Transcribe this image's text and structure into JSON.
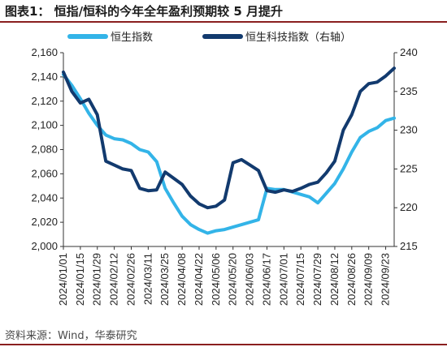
{
  "title": "图表1： 恒指/恒科的今年全年盈利预期较 5 月提升",
  "source": "资料来源：Wind，华泰研究",
  "chart_data": {
    "type": "line",
    "title": "图表1： 恒指/恒科的今年全年盈利预期较 5 月提升",
    "xlabel": "",
    "ylabel": "",
    "legend_position": "top",
    "grid": false,
    "x": [
      "2024/01/01",
      "2024/01/08",
      "2024/01/15",
      "2024/01/22",
      "2024/01/29",
      "2024/02/05",
      "2024/02/12",
      "2024/02/19",
      "2024/02/26",
      "2024/03/04",
      "2024/03/11",
      "2024/03/18",
      "2024/03/25",
      "2024/04/01",
      "2024/04/08",
      "2024/04/15",
      "2024/04/22",
      "2024/04/29",
      "2024/05/06",
      "2024/05/13",
      "2024/05/20",
      "2024/05/27",
      "2024/06/03",
      "2024/06/10",
      "2024/06/17",
      "2024/06/24",
      "2024/07/01",
      "2024/07/08",
      "2024/07/15",
      "2024/07/22",
      "2024/07/29",
      "2024/08/05",
      "2024/08/12",
      "2024/08/19",
      "2024/08/26",
      "2024/09/02",
      "2024/09/09",
      "2024/09/16",
      "2024/09/23",
      "2024/09/27"
    ],
    "x_tick_labels": [
      "2024/01/01",
      "2024/01/15",
      "2024/01/29",
      "2024/02/12",
      "2024/02/26",
      "2024/03/11",
      "2024/03/25",
      "2024/04/08",
      "2024/04/22",
      "2024/05/06",
      "2024/05/20",
      "2024/06/03",
      "2024/06/17",
      "2024/07/01",
      "2024/07/15",
      "2024/07/29",
      "2024/08/12",
      "2024/08/26",
      "2024/09/09",
      "2024/09/23"
    ],
    "y_left_ticks": [
      "2,000",
      "2,020",
      "2,040",
      "2,060",
      "2,080",
      "2,100",
      "2,120",
      "2,140",
      "2,160"
    ],
    "y_right_ticks": [
      "215",
      "220",
      "225",
      "230",
      "235",
      "240"
    ],
    "ylim": [
      2000,
      2160
    ],
    "y2lim": [
      215,
      240
    ],
    "series": [
      {
        "name": "恒生指数",
        "axis": "left",
        "color": "#33b4e8",
        "values": [
          2142,
          2133,
          2122,
          2110,
          2100,
          2092,
          2089,
          2088,
          2085,
          2080,
          2078,
          2070,
          2048,
          2036,
          2025,
          2018,
          2014,
          2011,
          2013,
          2014,
          2016,
          2018,
          2020,
          2022,
          2048,
          2047,
          2047,
          2045,
          2043,
          2041,
          2036,
          2044,
          2052,
          2064,
          2078,
          2090,
          2095,
          2098,
          2104,
          2106
        ]
      },
      {
        "name": "恒生科技指数（右轴）",
        "axis": "right",
        "color": "#123a6e",
        "values": [
          237.5,
          235.0,
          233.5,
          234.0,
          232.0,
          226.0,
          225.5,
          225.0,
          224.8,
          222.5,
          222.2,
          222.3,
          224.6,
          223.8,
          223.0,
          221.5,
          220.5,
          220.0,
          220.2,
          221.0,
          225.8,
          226.2,
          225.5,
          224.8,
          222.2,
          222.0,
          222.3,
          222.1,
          222.5,
          223.0,
          223.3,
          224.5,
          226.0,
          230.0,
          232.0,
          235.0,
          236.0,
          236.2,
          237.0,
          238.0
        ]
      }
    ]
  }
}
